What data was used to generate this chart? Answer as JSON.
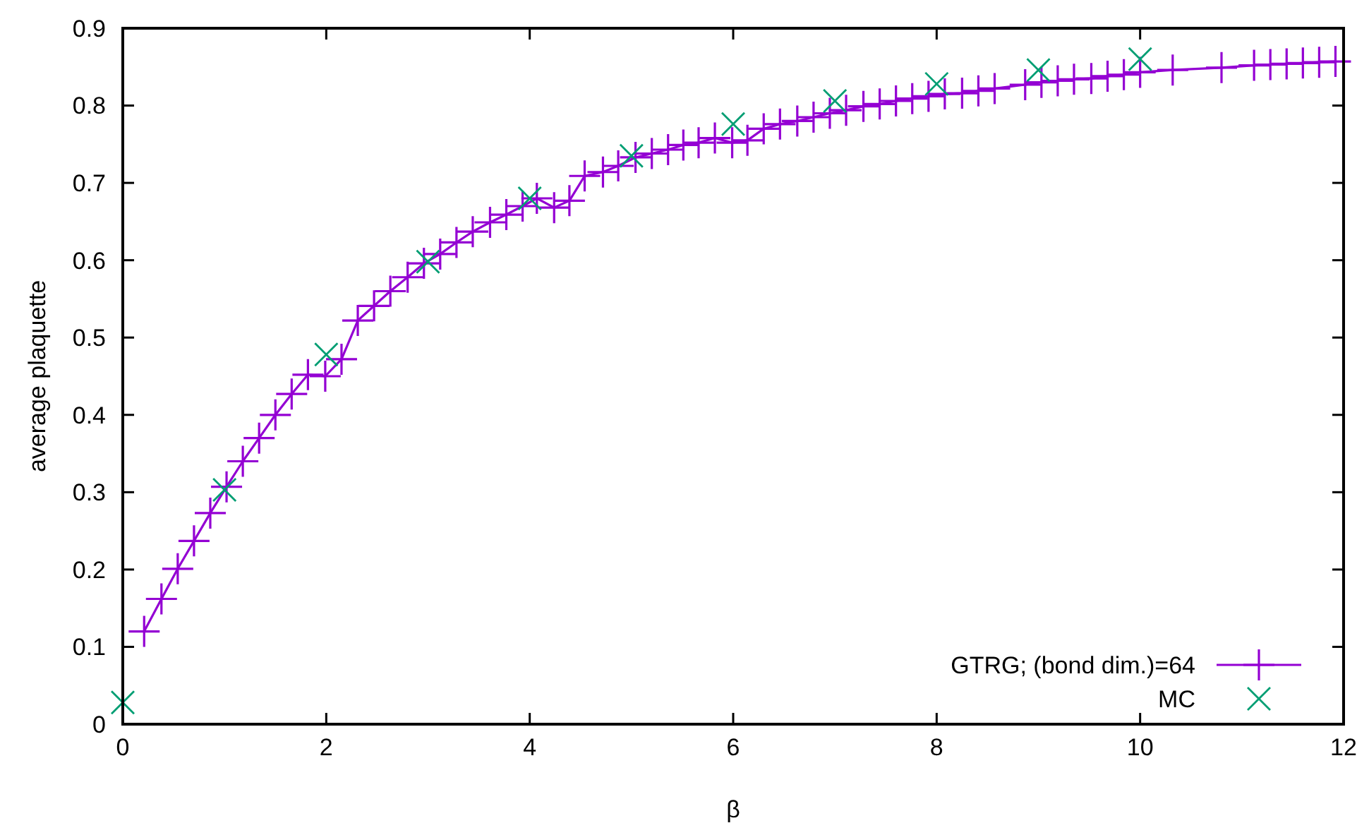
{
  "chart_data": {
    "type": "line",
    "xlabel": "β",
    "ylabel": "average plaquette",
    "xlim": [
      0,
      12
    ],
    "ylim": [
      0,
      0.9
    ],
    "xticks": [
      0,
      2,
      4,
      6,
      8,
      10,
      12
    ],
    "yticks": [
      0,
      0.1,
      0.2,
      0.3,
      0.4,
      0.5,
      0.6,
      0.7,
      0.8,
      0.9
    ],
    "grid": false,
    "legend": "bottom right",
    "series": [
      {
        "name": "GTRG; (bond dim.)=64",
        "color": "#9400d3",
        "marker": "cross",
        "x": [
          0.21,
          0.38,
          0.54,
          0.7,
          0.86,
          1.02,
          1.18,
          1.34,
          1.5,
          1.66,
          1.82,
          1.99,
          2.15,
          2.31,
          2.47,
          2.63,
          2.8,
          2.96,
          3.12,
          3.28,
          3.44,
          3.61,
          3.77,
          3.93,
          4.07,
          4.24,
          4.39,
          4.54,
          4.72,
          4.87,
          5.04,
          5.2,
          5.36,
          5.51,
          5.66,
          5.82,
          5.99,
          6.14,
          6.3,
          6.46,
          6.63,
          6.79,
          6.95,
          7.11,
          7.28,
          7.44,
          7.6,
          7.76,
          7.92,
          8.08,
          8.25,
          8.41,
          8.57,
          8.87,
          9.03,
          9.19,
          9.35,
          9.52,
          9.68,
          9.84,
          10.0,
          10.32,
          10.8,
          11.12,
          11.28,
          11.44,
          11.6,
          11.76,
          11.92
        ],
        "values": [
          0.12,
          0.162,
          0.201,
          0.237,
          0.273,
          0.307,
          0.34,
          0.37,
          0.4,
          0.427,
          0.452,
          0.45,
          0.472,
          0.522,
          0.541,
          0.56,
          0.578,
          0.596,
          0.608,
          0.623,
          0.637,
          0.649,
          0.659,
          0.67,
          0.68,
          0.668,
          0.677,
          0.709,
          0.714,
          0.722,
          0.733,
          0.738,
          0.743,
          0.749,
          0.752,
          0.758,
          0.752,
          0.755,
          0.77,
          0.776,
          0.78,
          0.785,
          0.79,
          0.794,
          0.799,
          0.802,
          0.806,
          0.809,
          0.812,
          0.815,
          0.816,
          0.819,
          0.822,
          0.827,
          0.83,
          0.832,
          0.834,
          0.835,
          0.838,
          0.84,
          0.843,
          0.846,
          0.849,
          0.852,
          0.853,
          0.854,
          0.855,
          0.856,
          0.857
        ]
      },
      {
        "name": "MC",
        "color": "#009e73",
        "type": "scatter",
        "marker": "cross",
        "x": [
          0,
          1,
          2,
          3,
          4,
          5,
          6,
          7,
          8,
          9,
          10
        ],
        "values": [
          0.028,
          0.303,
          0.478,
          0.598,
          0.68,
          0.735,
          0.776,
          0.806,
          0.828,
          0.846,
          0.86
        ]
      }
    ]
  }
}
